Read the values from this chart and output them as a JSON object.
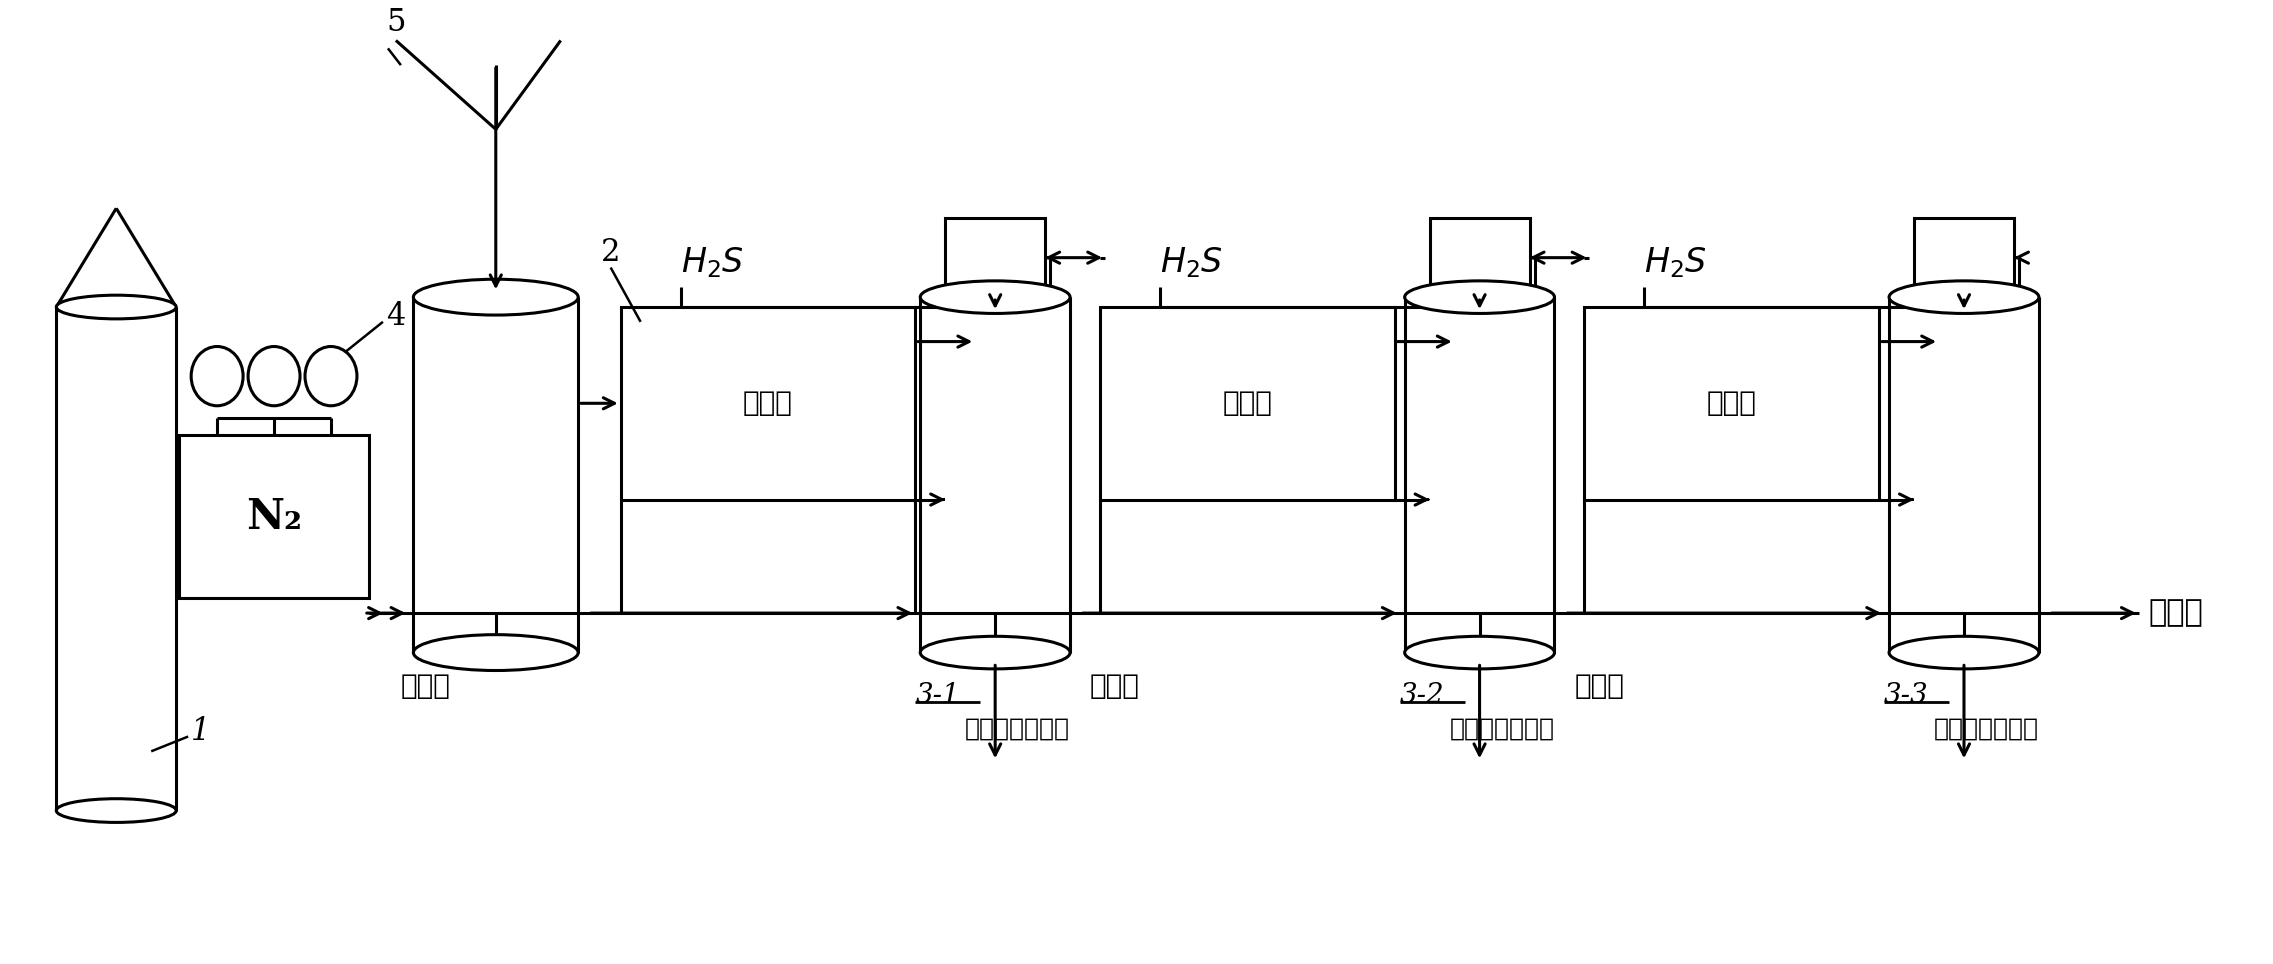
{
  "bg_color": "#ffffff",
  "lc": "#000000",
  "lw": 2.2,
  "fig_w": 22.73,
  "fig_h": 9.64,
  "dpi": 100,
  "xl": 0,
  "xr": 2273,
  "yb": 0,
  "yt": 964,
  "N2_text": "N₂",
  "label1": "1",
  "label2": "2",
  "label4": "4",
  "label5": "5",
  "label31": "3-1",
  "label32": "3-2",
  "label33": "3-3",
  "chendianjie": "沉淠液",
  "fajiaojie": "发酵液",
  "jinshu": "金属硫化物沉淠",
  "zhongxingshui": "中性水"
}
